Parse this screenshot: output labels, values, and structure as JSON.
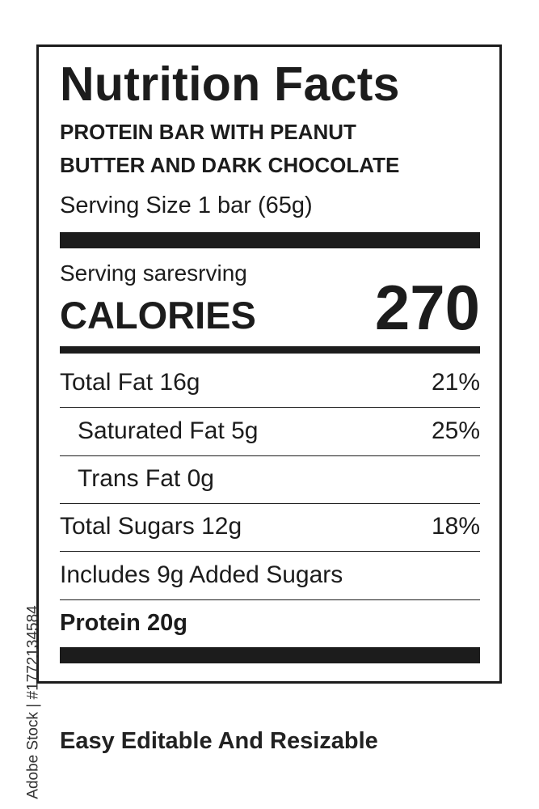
{
  "label": {
    "title": "Nutrition Facts",
    "product_line1": "PROTEIN BAR WITH PEANUT",
    "product_line2": "BUTTER AND DARK CHOCOLATE",
    "serving_size": "Serving Size 1 bar (65g)",
    "servings_text": "Serving saresrving",
    "calories_label": "CALORIES",
    "calories_value": "270",
    "rows": [
      {
        "name": "Total Fat 16g",
        "dv": "21%"
      },
      {
        "name": "Saturated Fat 5g",
        "dv": "25%"
      },
      {
        "name": "Trans Fat 0g",
        "dv": ""
      },
      {
        "name": "Total Sugars 12g",
        "dv": "18%"
      },
      {
        "name": "Includes 9g Added Sugars",
        "dv": ""
      },
      {
        "name": "Protein 20g",
        "dv": ""
      }
    ]
  },
  "footer": "Easy Editable And Resizable",
  "watermark": "Adobe Stock | #1772134584"
}
